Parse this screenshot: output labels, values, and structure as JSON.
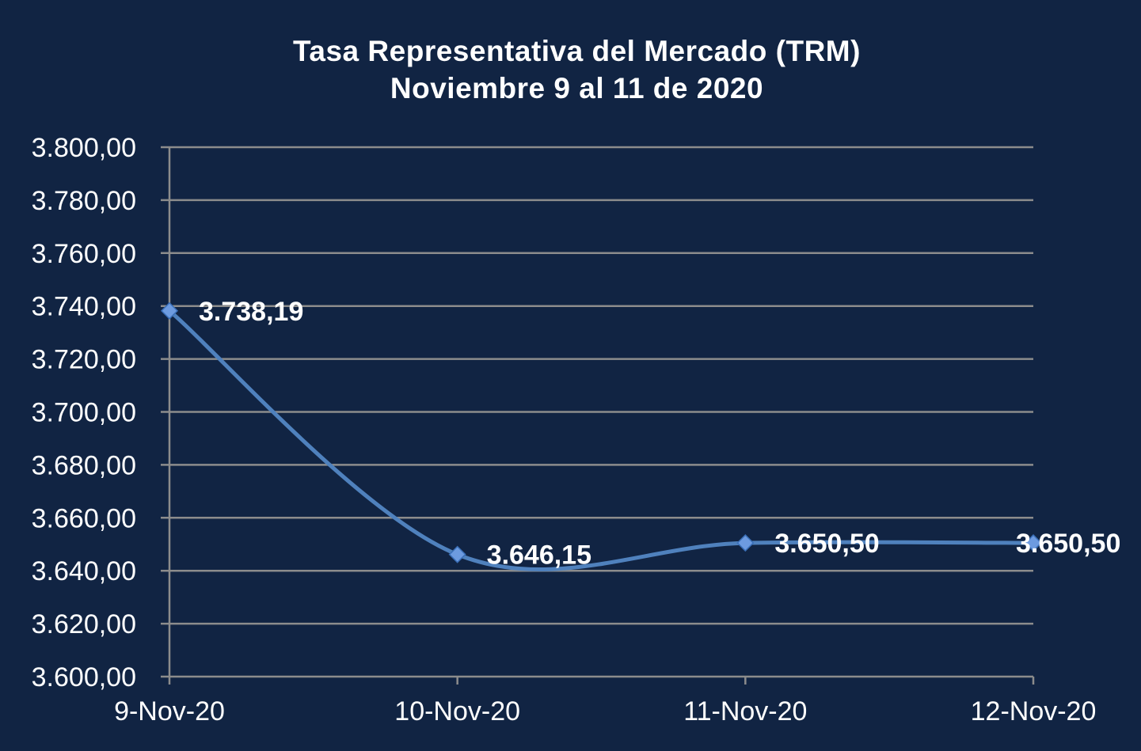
{
  "chart_data": {
    "type": "line",
    "title": "Tasa Representativa del Mercado (TRM)",
    "subtitle": "Noviembre  9 al 11 de  2020",
    "xlabel": "",
    "ylabel": "",
    "categories": [
      "9-Nov-20",
      "10-Nov-20",
      "11-Nov-20",
      "12-Nov-20"
    ],
    "series": [
      {
        "values": [
          3738.19,
          3646.15,
          3650.5,
          3650.5
        ],
        "data_labels": [
          "3.738,19",
          "3.646,15",
          "3.650,50",
          "3.650,50"
        ],
        "color": "#4f81bd",
        "marker": "diamond",
        "smooth": true
      }
    ],
    "ylim": [
      3600,
      3800
    ],
    "yticks": [
      3600,
      3620,
      3640,
      3660,
      3680,
      3700,
      3720,
      3740,
      3760,
      3780,
      3800
    ],
    "ytick_labels": [
      "3.600,00",
      "3.620,00",
      "3.640,00",
      "3.660,00",
      "3.680,00",
      "3.700,00",
      "3.720,00",
      "3.740,00",
      "3.760,00",
      "3.780,00",
      "3.800,00"
    ],
    "grid": true,
    "legend": "none",
    "colors": {
      "background": "#112443",
      "grid": "#8c8c8c",
      "text": "#ffffff",
      "line": "#4f81bd",
      "marker": "#6d9be0"
    }
  }
}
